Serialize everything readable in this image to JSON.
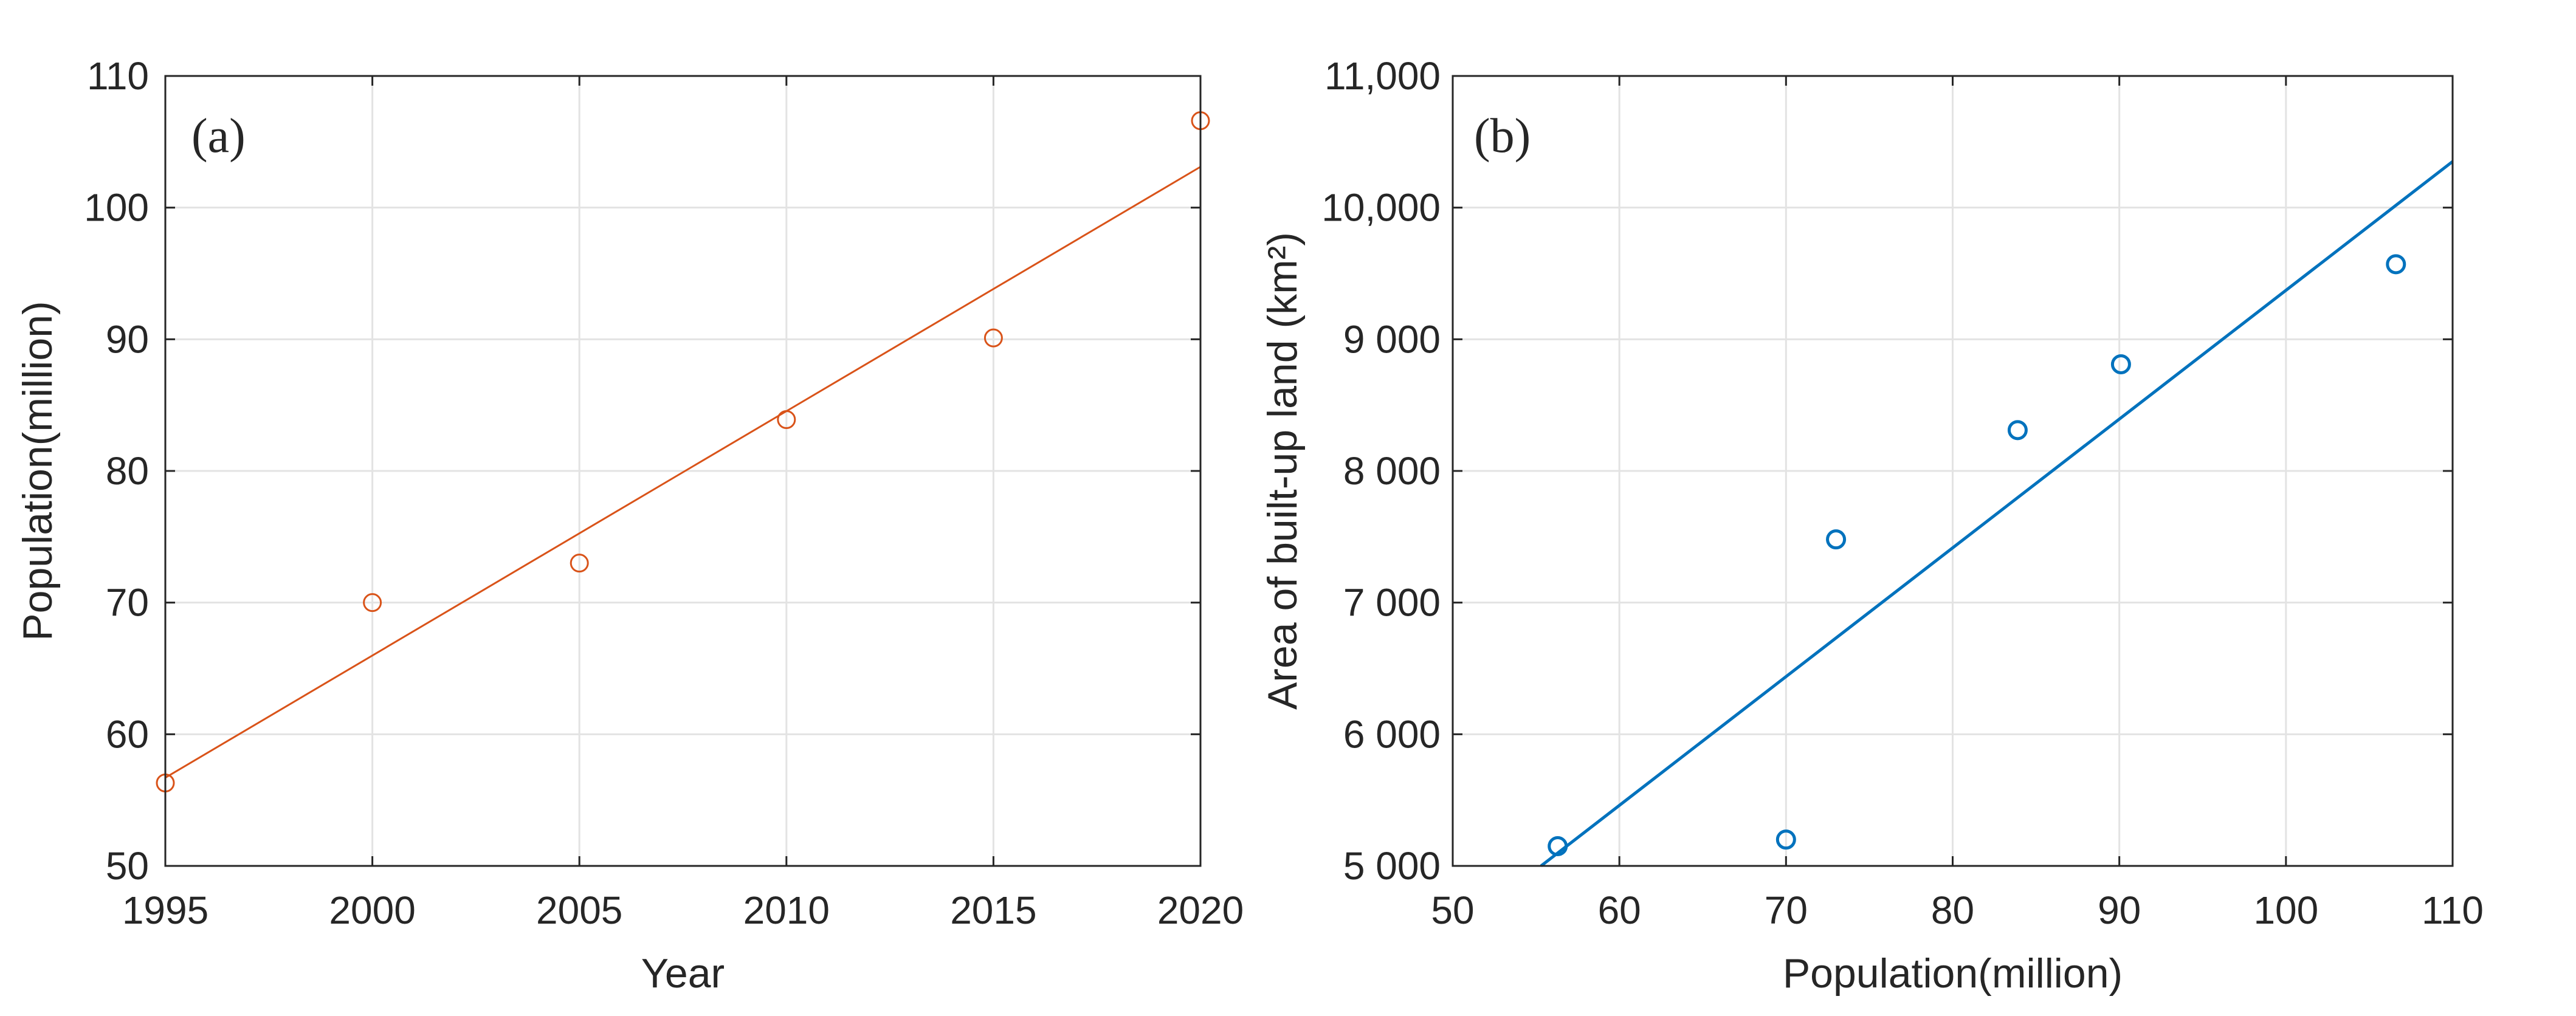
{
  "colors": {
    "orange": "#d95319",
    "blue": "#0072bd",
    "grid": "#e3e3e3",
    "axis": "#262626"
  },
  "chart_data": [
    {
      "type": "scatter",
      "panel_label": "(a)",
      "xlabel": "Year",
      "ylabel": "Population(million)",
      "xlim": [
        1995,
        2020
      ],
      "ylim": [
        50,
        110
      ],
      "xticks": [
        1995,
        2000,
        2005,
        2010,
        2015,
        2020
      ],
      "xtick_labels": [
        "1995",
        "2000",
        "2005",
        "2010",
        "2015",
        "2020"
      ],
      "yticks": [
        50,
        60,
        70,
        80,
        90,
        100,
        110
      ],
      "ytick_labels": [
        "50",
        "60",
        "70",
        "80",
        "90",
        "100",
        "110"
      ],
      "grid": true,
      "series": [
        {
          "marker": "circle",
          "color": "#d95319",
          "x": [
            1995,
            2000,
            2005,
            2010,
            2015,
            2020
          ],
          "y": [
            56.3,
            70.0,
            73.0,
            83.9,
            90.1,
            106.6
          ]
        }
      ],
      "fit_line": {
        "x": [
          1995,
          2020
        ],
        "y": [
          56.7,
          103.1
        ],
        "color": "#d95319"
      }
    },
    {
      "type": "scatter",
      "panel_label": "(b)",
      "xlabel": "Population(million)",
      "ylabel": "Area of built-up land (km²)",
      "xlim": [
        50,
        110
      ],
      "ylim": [
        5000,
        11000
      ],
      "xticks": [
        50,
        60,
        70,
        80,
        90,
        100,
        110
      ],
      "xtick_labels": [
        "50",
        "60",
        "70",
        "80",
        "90",
        "100",
        "110"
      ],
      "yticks": [
        5000,
        6000,
        7000,
        8000,
        9000,
        10000,
        11000
      ],
      "ytick_labels": [
        "5 000",
        "6 000",
        "7 000",
        "8 000",
        "9 000",
        "10,000",
        "11,000"
      ],
      "grid": true,
      "series": [
        {
          "marker": "circle",
          "color": "#0072bd",
          "x": [
            56.3,
            70.0,
            73.0,
            83.9,
            90.1,
            106.6
          ],
          "y": [
            5150,
            5200,
            7480,
            8310,
            8810,
            9570
          ]
        }
      ],
      "fit_line": {
        "x": [
          55.3,
          110
        ],
        "y": [
          5000,
          10350
        ],
        "color": "#0072bd"
      }
    }
  ]
}
